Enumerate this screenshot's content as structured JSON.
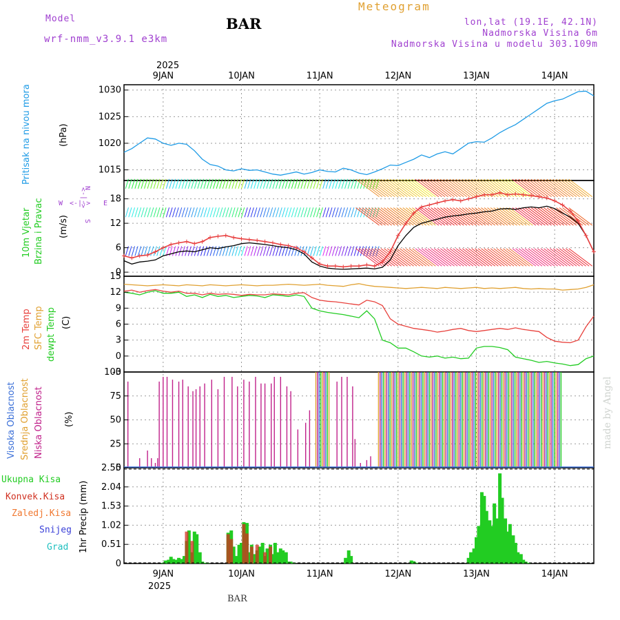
{
  "header": {
    "model_label": "Model",
    "model_name": "wrf-nmm_v3.9.1  e3km",
    "station": "BAR",
    "product": "Meteogram",
    "coords": "lon,lat (19.1E, 42.1N)",
    "elevation": "Nadmorska Visina 6m",
    "model_elevation": "Nadmorska Visina u modelu 303.109m",
    "watermark": "made by Angel",
    "footer_station": "BAR"
  },
  "colors": {
    "pressure": "#1e9be6",
    "t2m": "#e8413c",
    "tsfc": "#e0a030",
    "dewpt": "#22cc22",
    "cloud_high": "#3a6fd8",
    "cloud_mid": "#e0a030",
    "cloud_low": "#c0208a",
    "precip_total": "#22cc22",
    "precip_conv": "#d03020",
    "wind_speed": "#000000",
    "gust": "#e84040",
    "purple_label": "#a040d0"
  },
  "time_axis": {
    "year": "2025",
    "days": [
      "9JAN",
      "10JAN",
      "11JAN",
      "12JAN",
      "13JAN",
      "14JAN"
    ],
    "range_days": [
      8.5,
      14.5
    ]
  },
  "chart_data": [
    {
      "type": "line",
      "panel": "pressure",
      "ylabel_rotated": "Pritisak na nivou mora",
      "unit": "(hPa)",
      "ylim": [
        1013,
        1031
      ],
      "yticks": [
        1015,
        1020,
        1025,
        1030
      ],
      "x": [
        8.5,
        8.6,
        8.7,
        8.8,
        8.9,
        9.0,
        9.1,
        9.2,
        9.3,
        9.4,
        9.5,
        9.6,
        9.7,
        9.8,
        9.9,
        10.0,
        10.1,
        10.2,
        10.3,
        10.4,
        10.5,
        10.6,
        10.7,
        10.8,
        10.9,
        11.0,
        11.1,
        11.2,
        11.3,
        11.4,
        11.5,
        11.6,
        11.7,
        11.8,
        11.9,
        12.0,
        12.1,
        12.2,
        12.3,
        12.4,
        12.5,
        12.6,
        12.7,
        12.8,
        12.9,
        13.0,
        13.1,
        13.2,
        13.3,
        13.4,
        13.5,
        13.6,
        13.7,
        13.8,
        13.9,
        14.0,
        14.1,
        14.2,
        14.3,
        14.4,
        14.5
      ],
      "values": [
        1018.3,
        1019.0,
        1020.0,
        1021.0,
        1020.8,
        1020.0,
        1019.6,
        1020.0,
        1019.8,
        1018.6,
        1017.0,
        1016.0,
        1015.7,
        1015.0,
        1014.8,
        1015.2,
        1014.9,
        1015.0,
        1014.6,
        1014.2,
        1014.0,
        1014.3,
        1014.6,
        1014.2,
        1014.5,
        1015.0,
        1014.7,
        1014.6,
        1015.3,
        1015.0,
        1014.4,
        1014.1,
        1014.6,
        1015.2,
        1015.9,
        1015.8,
        1016.4,
        1017.0,
        1017.8,
        1017.3,
        1018.0,
        1018.4,
        1018.0,
        1019.0,
        1020.0,
        1020.3,
        1020.2,
        1021.0,
        1022.0,
        1022.8,
        1023.5,
        1024.5,
        1025.5,
        1026.5,
        1027.5,
        1028.0,
        1028.3,
        1029.0,
        1029.7,
        1029.8,
        1028.9
      ],
      "color": "#1e9be6"
    },
    {
      "type": "line",
      "panel": "wind",
      "ylabel_rotated": "10m Vjetar",
      "ylabel_rotated_2": "Brzina i Pravac",
      "unit": "(m/s)",
      "compass": [
        "W",
        "<-|->",
        "E",
        "N",
        "S"
      ],
      "ylim": [
        -1,
        22.5
      ],
      "yticks": [
        0,
        6,
        12,
        18
      ],
      "x": [
        8.5,
        8.6,
        8.7,
        8.8,
        8.9,
        9.0,
        9.1,
        9.2,
        9.3,
        9.4,
        9.5,
        9.6,
        9.7,
        9.8,
        9.9,
        10.0,
        10.1,
        10.2,
        10.3,
        10.4,
        10.5,
        10.6,
        10.7,
        10.8,
        10.9,
        11.0,
        11.1,
        11.2,
        11.3,
        11.4,
        11.5,
        11.6,
        11.7,
        11.8,
        11.9,
        12.0,
        12.1,
        12.2,
        12.3,
        12.4,
        12.5,
        12.6,
        12.7,
        12.8,
        12.9,
        13.0,
        13.1,
        13.2,
        13.3,
        13.4,
        13.5,
        13.6,
        13.7,
        13.8,
        13.9,
        14.0,
        14.1,
        14.2,
        14.3,
        14.4,
        14.5
      ],
      "series": [
        {
          "name": "wind speed",
          "color": "#000000",
          "values": [
            2.8,
            2.0,
            2.5,
            2.7,
            3.0,
            4.0,
            4.5,
            5.0,
            5.2,
            5.0,
            5.5,
            6.0,
            5.8,
            6.2,
            6.5,
            7.0,
            7.2,
            7.0,
            6.8,
            6.5,
            6.2,
            6.0,
            5.5,
            4.5,
            2.5,
            1.5,
            1.0,
            0.8,
            0.7,
            0.8,
            0.9,
            1.0,
            0.8,
            1.2,
            3.0,
            6.5,
            9.0,
            11.0,
            12.0,
            12.5,
            13.0,
            13.5,
            13.8,
            14.0,
            14.3,
            14.5,
            14.8,
            15.0,
            15.5,
            15.6,
            15.4,
            15.8,
            16.0,
            15.8,
            16.2,
            15.6,
            14.5,
            13.5,
            12.0,
            9.0,
            5.0
          ]
        },
        {
          "name": "wind gust",
          "color": "#e84040",
          "values": [
            4.0,
            3.5,
            4.0,
            4.2,
            5.0,
            6.0,
            6.8,
            7.2,
            7.5,
            7.0,
            7.5,
            8.5,
            8.8,
            9.0,
            8.5,
            8.2,
            8.0,
            7.8,
            7.5,
            7.2,
            6.8,
            6.5,
            6.0,
            5.0,
            3.5,
            2.0,
            1.5,
            1.5,
            1.3,
            1.5,
            1.5,
            1.8,
            1.5,
            2.5,
            5.0,
            9.0,
            12.0,
            14.5,
            16.0,
            16.5,
            17.0,
            17.5,
            17.8,
            17.5,
            18.0,
            18.5,
            19.0,
            19.0,
            19.5,
            19.0,
            19.2,
            19.0,
            18.8,
            18.5,
            18.2,
            17.5,
            16.5,
            15.0,
            12.5,
            9.0,
            5.0
          ]
        }
      ]
    },
    {
      "type": "line",
      "panel": "temperature",
      "ylabel_rotated": "2m Temp",
      "ylabel_rotated_2": "SFC Temp",
      "ylabel_rotated_3": "dewpt Temp",
      "unit": "(C)",
      "ylim": [
        -3,
        15
      ],
      "yticks": [
        -3,
        0,
        3,
        6,
        9,
        12,
        15
      ],
      "x": [
        8.5,
        8.6,
        8.7,
        8.8,
        8.9,
        9.0,
        9.1,
        9.2,
        9.3,
        9.4,
        9.5,
        9.6,
        9.7,
        9.8,
        9.9,
        10.0,
        10.1,
        10.2,
        10.3,
        10.4,
        10.5,
        10.6,
        10.7,
        10.8,
        10.9,
        11.0,
        11.1,
        11.2,
        11.3,
        11.4,
        11.5,
        11.6,
        11.7,
        11.8,
        11.9,
        12.0,
        12.1,
        12.2,
        12.3,
        12.4,
        12.5,
        12.6,
        12.7,
        12.8,
        12.9,
        13.0,
        13.1,
        13.2,
        13.3,
        13.4,
        13.5,
        13.6,
        13.7,
        13.8,
        13.9,
        14.0,
        14.1,
        14.2,
        14.3,
        14.4,
        14.5
      ],
      "series": [
        {
          "name": "SFC Temp",
          "color": "#e0a030",
          "values": [
            13.5,
            13.4,
            13.3,
            13.2,
            13.3,
            13.4,
            13.3,
            13.2,
            13.4,
            13.3,
            13.2,
            13.4,
            13.3,
            13.2,
            13.3,
            13.4,
            13.3,
            13.2,
            13.3,
            13.3,
            13.4,
            13.5,
            13.4,
            13.3,
            13.4,
            13.5,
            13.3,
            13.2,
            13.1,
            13.4,
            13.6,
            13.3,
            13.1,
            13.0,
            12.9,
            12.8,
            12.7,
            12.8,
            12.9,
            12.8,
            12.7,
            12.9,
            12.8,
            12.7,
            12.8,
            12.9,
            12.7,
            12.8,
            12.7,
            12.8,
            12.9,
            12.7,
            12.6,
            12.7,
            12.6,
            12.6,
            12.4,
            12.5,
            12.6,
            12.9,
            13.4
          ]
        },
        {
          "name": "2m Temp",
          "color": "#e8413c",
          "values": [
            12.2,
            12.4,
            12.0,
            12.3,
            12.5,
            12.2,
            12.0,
            12.2,
            11.8,
            11.8,
            11.5,
            11.8,
            11.6,
            11.7,
            11.6,
            11.4,
            11.6,
            11.5,
            11.5,
            11.7,
            11.6,
            11.5,
            11.8,
            11.9,
            11.0,
            10.5,
            10.3,
            10.2,
            10.0,
            9.8,
            9.6,
            10.5,
            10.2,
            9.5,
            7.0,
            6.0,
            5.6,
            5.2,
            5.0,
            4.8,
            4.5,
            4.7,
            5.0,
            5.2,
            4.8,
            4.6,
            4.8,
            5.0,
            5.2,
            5.0,
            5.3,
            5.0,
            4.8,
            4.6,
            3.5,
            2.8,
            2.6,
            2.5,
            3.0,
            5.5,
            7.5
          ]
        },
        {
          "name": "dewpt Temp",
          "color": "#22cc22",
          "values": [
            12.0,
            11.8,
            11.5,
            12.0,
            12.3,
            11.8,
            11.8,
            12.0,
            11.2,
            11.5,
            11.0,
            11.6,
            11.2,
            11.4,
            11.0,
            11.2,
            11.4,
            11.3,
            11.0,
            11.5,
            11.4,
            11.2,
            11.5,
            11.2,
            9.0,
            8.5,
            8.2,
            8.0,
            7.8,
            7.5,
            7.2,
            8.5,
            7.0,
            3.0,
            2.5,
            1.5,
            1.5,
            0.8,
            0.0,
            -0.2,
            0.0,
            -0.4,
            -0.2,
            -0.5,
            -0.4,
            1.5,
            1.8,
            1.8,
            1.6,
            1.2,
            -0.2,
            -0.5,
            -0.8,
            -1.2,
            -1.0,
            -1.3,
            -1.5,
            -1.8,
            -1.6,
            -0.5,
            0.0
          ]
        }
      ]
    },
    {
      "type": "bar",
      "panel": "cloud",
      "ylabel_rotated": "Visoka Oblacnost",
      "ylabel_rotated_2": "Srednja Oblacnost",
      "ylabel_rotated_3": "Niska  Oblacnost",
      "unit": "(%)",
      "ylim": [
        0,
        100
      ],
      "yticks": [
        0,
        25,
        50,
        75,
        100
      ],
      "low_cloud_bars": [
        [
          8.55,
          90
        ],
        [
          8.7,
          10
        ],
        [
          8.8,
          18
        ],
        [
          8.85,
          10
        ],
        [
          8.9,
          5
        ],
        [
          8.93,
          10
        ],
        [
          8.95,
          90
        ],
        [
          9.0,
          95
        ],
        [
          9.05,
          95
        ],
        [
          9.12,
          92
        ],
        [
          9.2,
          90
        ],
        [
          9.25,
          92
        ],
        [
          9.32,
          85
        ],
        [
          9.38,
          80
        ],
        [
          9.42,
          82
        ],
        [
          9.47,
          85
        ],
        [
          9.53,
          88
        ],
        [
          9.62,
          92
        ],
        [
          9.7,
          82
        ],
        [
          9.78,
          95
        ],
        [
          9.88,
          95
        ],
        [
          9.95,
          85
        ],
        [
          10.03,
          92
        ],
        [
          10.1,
          90
        ],
        [
          10.18,
          95
        ],
        [
          10.25,
          88
        ],
        [
          10.3,
          88
        ],
        [
          10.38,
          88
        ],
        [
          10.42,
          95
        ],
        [
          10.5,
          95
        ],
        [
          10.58,
          85
        ],
        [
          10.63,
          80
        ],
        [
          10.72,
          40
        ],
        [
          10.82,
          47
        ],
        [
          10.87,
          60
        ]
      ],
      "dense_bands": [
        [
          10.95,
          11.12
        ],
        [
          11.75,
          14.1
        ]
      ],
      "extra_low": [
        [
          11.22,
          90
        ],
        [
          11.28,
          95
        ],
        [
          11.35,
          95
        ],
        [
          11.42,
          85
        ],
        [
          11.45,
          30
        ],
        [
          11.52,
          5
        ],
        [
          11.6,
          8
        ],
        [
          11.65,
          12
        ]
      ]
    },
    {
      "type": "bar",
      "panel": "precip",
      "legend": [
        "Ukupna Kisa",
        "Konvek.Kisa",
        "Zaledj.Kisa",
        "Snijeg",
        "Grad"
      ],
      "ylabel": "1hr Precip (mm)",
      "ylim": [
        0,
        2.55
      ],
      "yticks": [
        0,
        0.51,
        1.02,
        1.53,
        2.04,
        2.55
      ],
      "x": [
        9.0,
        9.03,
        9.07,
        9.1,
        9.13,
        9.17,
        9.2,
        9.23,
        9.27,
        9.3,
        9.33,
        9.37,
        9.4,
        9.43,
        9.47,
        9.5,
        9.53,
        9.57,
        9.83,
        9.87,
        9.9,
        9.93,
        9.97,
        10.0,
        10.03,
        10.07,
        10.1,
        10.13,
        10.17,
        10.2,
        10.23,
        10.27,
        10.3,
        10.33,
        10.37,
        10.4,
        10.43,
        10.47,
        10.5,
        10.53,
        10.57,
        10.6,
        10.63,
        10.67,
        11.33,
        11.37,
        11.4,
        12.17,
        12.2,
        12.23,
        12.9,
        12.93,
        12.97,
        13.0,
        13.03,
        13.07,
        13.1,
        13.13,
        13.17,
        13.2,
        13.23,
        13.27,
        13.3,
        13.33,
        13.37,
        13.4,
        13.43,
        13.47,
        13.5,
        13.53,
        13.57,
        13.6,
        13.63,
        13.67
      ],
      "values": [
        0.02,
        0.08,
        0.1,
        0.18,
        0.12,
        0.1,
        0.15,
        0.12,
        0.2,
        0.6,
        0.88,
        0.3,
        0.85,
        0.78,
        0.3,
        0.05,
        0.02,
        0.01,
        0.82,
        0.88,
        0.45,
        0.2,
        0.5,
        0.55,
        1.1,
        1.08,
        0.3,
        0.5,
        0.25,
        0.35,
        0.45,
        0.55,
        0.2,
        0.4,
        0.5,
        0.25,
        0.55,
        0.3,
        0.4,
        0.35,
        0.3,
        0.05,
        0.05,
        0.02,
        0.15,
        0.35,
        0.2,
        0.08,
        0.06,
        0.02,
        0.15,
        0.3,
        0.4,
        0.7,
        1.0,
        1.9,
        1.8,
        1.4,
        1.15,
        1.0,
        1.6,
        1.2,
        2.4,
        1.75,
        1.2,
        0.85,
        1.05,
        0.75,
        0.55,
        0.3,
        0.25,
        0.1,
        0.05,
        0.02
      ],
      "conv_overlay": [
        [
          9.3,
          0.85
        ],
        [
          9.37,
          0.6
        ],
        [
          9.83,
          0.78
        ],
        [
          9.87,
          0.65
        ],
        [
          10.03,
          1.05
        ],
        [
          10.07,
          0.8
        ],
        [
          10.13,
          0.45
        ],
        [
          10.2,
          0.5
        ],
        [
          10.3,
          0.3
        ],
        [
          10.37,
          0.45
        ]
      ]
    }
  ]
}
